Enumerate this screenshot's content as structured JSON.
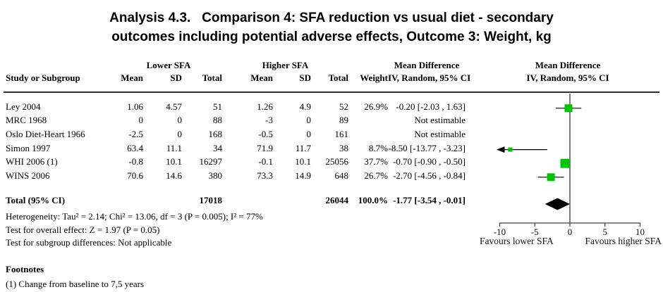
{
  "title": {
    "line1": "Analysis 4.3.   Comparison 4: SFA reduction vs usual diet - secondary",
    "line2": "outcomes including potential adverse effects, Outcome 3: Weight, kg"
  },
  "table": {
    "group_headers": {
      "lower": "Lower SFA",
      "higher": "Higher SFA"
    },
    "col_headers": {
      "study": "Study or Subgroup",
      "mean": "Mean",
      "sd": "SD",
      "total": "Total",
      "weight": "Weight",
      "md_line1": "Mean Difference",
      "md_line2": "IV, Random, 95% CI"
    },
    "plot_header": {
      "line1": "Mean Difference",
      "line2": "IV, Random, 95% CI"
    },
    "rows": [
      {
        "study": "Ley 2004",
        "mean1": "1.06",
        "sd1": "4.57",
        "total1": "51",
        "mean2": "1.26",
        "sd2": "4.9",
        "total2": "52",
        "weight": "26.9%",
        "ci": "-0.20 [-2.03 , 1.63]"
      },
      {
        "study": "MRC 1968",
        "mean1": "0",
        "sd1": "0",
        "total1": "88",
        "mean2": "-3",
        "sd2": "0",
        "total2": "89",
        "weight": "",
        "ci": "Not estimable"
      },
      {
        "study": "Oslo Diet-Heart 1966",
        "mean1": "-2.5",
        "sd1": "0",
        "total1": "168",
        "mean2": "-0.5",
        "sd2": "0",
        "total2": "161",
        "weight": "",
        "ci": "Not estimable"
      },
      {
        "study": "Simon 1997",
        "mean1": "63.4",
        "sd1": "11.1",
        "total1": "34",
        "mean2": "71.9",
        "sd2": "11.7",
        "total2": "38",
        "weight": "8.7%",
        "ci": "-8.50 [-13.77 , -3.23]"
      },
      {
        "study": "WHI 2006 (1)",
        "mean1": "-0.8",
        "sd1": "10.1",
        "total1": "16297",
        "mean2": "-0.1",
        "sd2": "10.1",
        "total2": "25056",
        "weight": "37.7%",
        "ci": "-0.70 [-0.90 , -0.50]"
      },
      {
        "study": "WINS 2006",
        "mean1": "70.6",
        "sd1": "14.6",
        "total1": "380",
        "mean2": "73.3",
        "sd2": "14.9",
        "total2": "648",
        "weight": "26.7%",
        "ci": "-2.70 [-4.56 , -0.84]"
      }
    ],
    "total_row": {
      "label": "Total (95% CI)",
      "total1": "17018",
      "total2": "26044",
      "weight": "100.0%",
      "ci": "-1.77 [-3.54 , -0.01]"
    }
  },
  "stats": {
    "heterogeneity": "Heterogeneity: Tau² = 2.14; Chi² = 13.06, df = 3 (P = 0.005); I² = 77%",
    "overall_effect": "Test for overall effect: Z = 1.97 (P = 0.05)",
    "subgroup": "Test for subgroup differences: Not applicable"
  },
  "footnotes": {
    "heading": "Footnotes",
    "item1": "(1) Change from baseline to 7,5 years"
  },
  "chart_data": {
    "type": "forest",
    "effect_measure": "Mean Difference, IV, Random, 95% CI",
    "axis": {
      "min": -10,
      "max": 10,
      "ticks": [
        -10,
        -5,
        0,
        5,
        10
      ],
      "label_left": "Favours lower SFA",
      "label_right": "Favours higher SFA"
    },
    "studies": [
      {
        "name": "Ley 2004",
        "row": 0,
        "estimate": -0.2,
        "ci_low": -2.03,
        "ci_high": 1.63,
        "weight_pct": 26.9
      },
      {
        "name": "MRC 1968",
        "row": 1,
        "estimate": null,
        "ci_low": null,
        "ci_high": null,
        "weight_pct": null,
        "not_estimable": true
      },
      {
        "name": "Oslo Diet-Heart 1966",
        "row": 2,
        "estimate": null,
        "ci_low": null,
        "ci_high": null,
        "weight_pct": null,
        "not_estimable": true
      },
      {
        "name": "Simon 1997",
        "row": 3,
        "estimate": -8.5,
        "ci_low": -13.77,
        "ci_high": -3.23,
        "weight_pct": 8.7
      },
      {
        "name": "WHI 2006 (1)",
        "row": 4,
        "estimate": -0.7,
        "ci_low": -0.9,
        "ci_high": -0.5,
        "weight_pct": 37.7
      },
      {
        "name": "WINS 2006",
        "row": 5,
        "estimate": -2.7,
        "ci_low": -4.56,
        "ci_high": -0.84,
        "weight_pct": 26.7
      }
    ],
    "total": {
      "estimate": -1.77,
      "ci_low": -3.54,
      "ci_high": -0.01
    },
    "colors": {
      "square": "#00c400",
      "diamond": "#000000",
      "zero_line": "#808080",
      "axis": "#404040"
    }
  }
}
